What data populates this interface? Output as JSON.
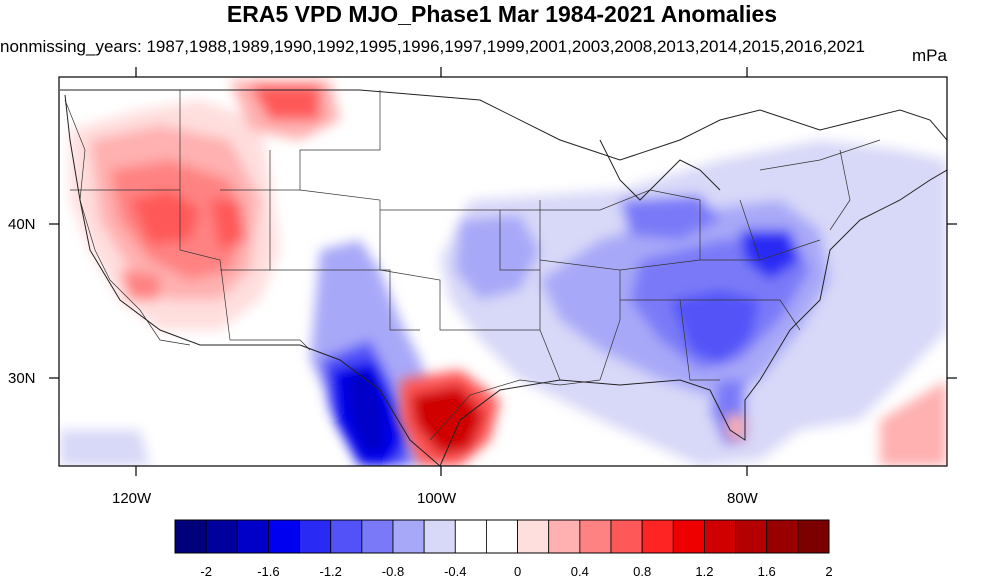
{
  "title": "ERA5 VPD MJO_Phase1 Mar 1984-2021 Anomalies",
  "subtitle": "nonmissing_years: 1987,1988,1989,1990,1992,1995,1996,1997,1999,2001,2003,2008,2013,2014,2015,2016,2021",
  "units": "mPa",
  "map": {
    "lon_labels": [
      "120W",
      "100W",
      "80W"
    ],
    "lat_labels": [
      "40N",
      "30N"
    ]
  },
  "colorbar": {
    "labels": [
      "-2",
      "-1.6",
      "-1.2",
      "-0.8",
      "-0.4",
      "0",
      "0.4",
      "0.8",
      "1.2",
      "1.6",
      "2"
    ],
    "colors": [
      "#00007a",
      "#00009c",
      "#0000c8",
      "#0000f0",
      "#2a2af5",
      "#5252f8",
      "#7a7af8",
      "#a8a8f8",
      "#d8d8f8",
      "#ffffff",
      "#ffffff",
      "#ffdede",
      "#ffb0b0",
      "#ff8282",
      "#ff5858",
      "#ff2424",
      "#ee0000",
      "#d00000",
      "#b40000",
      "#980000",
      "#7c0000"
    ]
  },
  "chart_data": {
    "type": "heatmap",
    "title": "ERA5 VPD MJO_Phase1 Mar 1984-2021 Anomalies",
    "units": "mPa",
    "x_axis": {
      "ticks": [
        "120W",
        "100W",
        "80W"
      ]
    },
    "y_axis": {
      "ticks": [
        "40N",
        "30N"
      ]
    },
    "color_scale": {
      "min": -2,
      "max": 2,
      "step": 0.2,
      "labels": [
        -2,
        -1.6,
        -1.2,
        -0.8,
        -0.4,
        0,
        0.4,
        0.8,
        1.2,
        1.6,
        2
      ]
    }
  }
}
